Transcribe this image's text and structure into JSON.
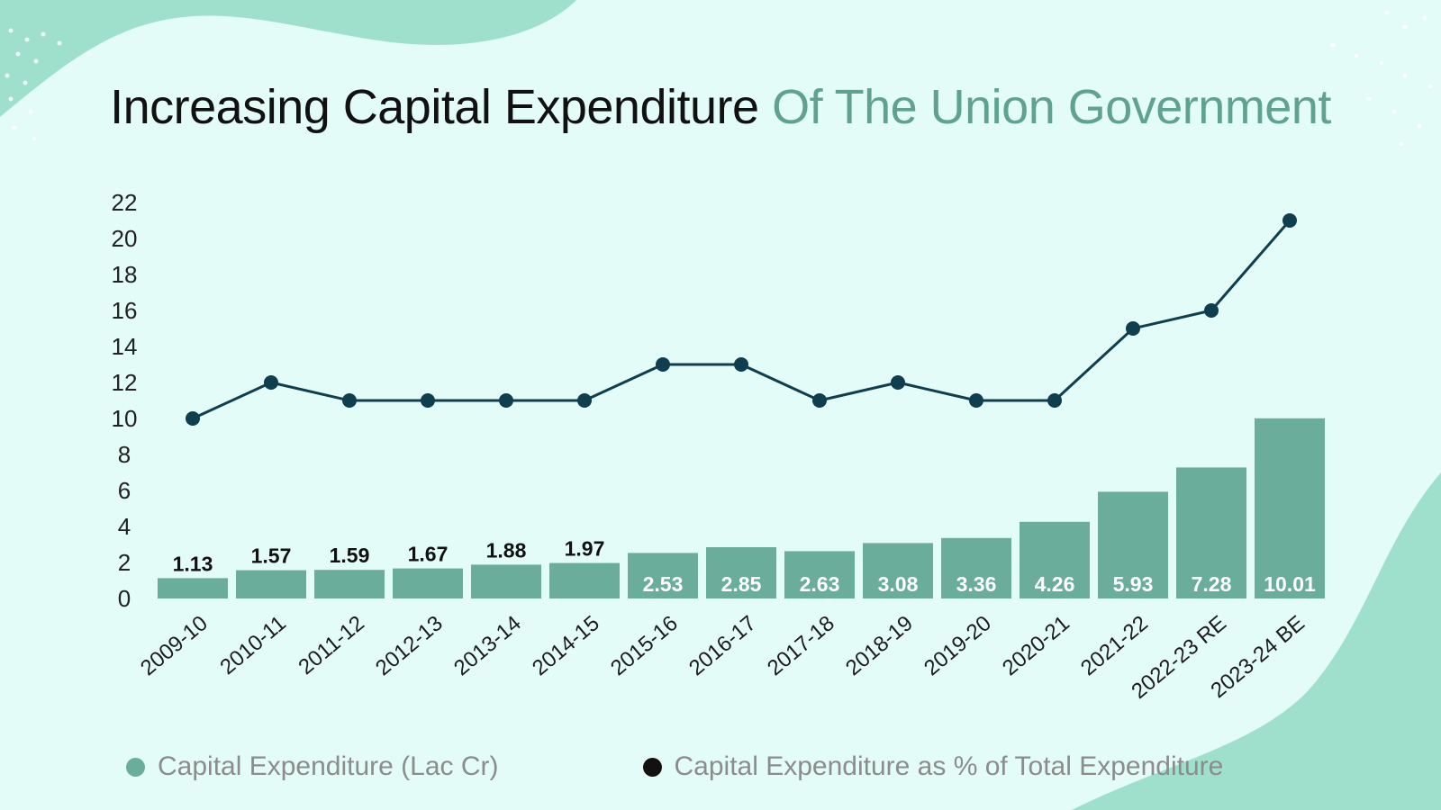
{
  "title": {
    "part1": "Increasing Capital Expenditure",
    "part2": "Of The Union Government"
  },
  "colors": {
    "background": "#e3fcf7",
    "bar": "#6aad9b",
    "line": "#0f3e4e",
    "title_accent": "#5fa38f",
    "legend_text": "#8c8c8c"
  },
  "chart_data": {
    "type": "bar",
    "categories": [
      "2009-10",
      "2010-11",
      "2011-12",
      "2012-13",
      "2013-14",
      "2014-15",
      "2015-16",
      "2016-17",
      "2017-18",
      "2018-19",
      "2019-20",
      "2020-21",
      "2021-22",
      "2022-23 RE",
      "2023-24 BE"
    ],
    "series": [
      {
        "name": "Capital Expenditure (Lac Cr)",
        "type": "bar",
        "values": [
          1.13,
          1.57,
          1.59,
          1.67,
          1.88,
          1.97,
          2.53,
          2.85,
          2.63,
          3.08,
          3.36,
          4.26,
          5.93,
          7.28,
          10.01
        ],
        "labels": [
          "1.13",
          "1.57",
          "1.59",
          "1.67",
          "1.88",
          "1.97",
          "2.53",
          "2.85",
          "2.63",
          "3.08",
          "3.36",
          "4.26",
          "5.93",
          "7.28",
          "10.01"
        ]
      },
      {
        "name": "Capital Expenditure as % of Total Expenditure",
        "type": "line",
        "values": [
          10,
          12,
          11,
          11,
          11,
          11,
          13,
          13,
          11,
          12,
          11,
          11,
          15,
          16,
          21
        ]
      }
    ],
    "yticks": [
      0,
      2,
      4,
      6,
      8,
      10,
      12,
      14,
      16,
      18,
      20,
      22
    ],
    "ylim": [
      0,
      22
    ],
    "xlabel": "",
    "ylabel": "",
    "grid": false,
    "legend_position": "bottom"
  }
}
